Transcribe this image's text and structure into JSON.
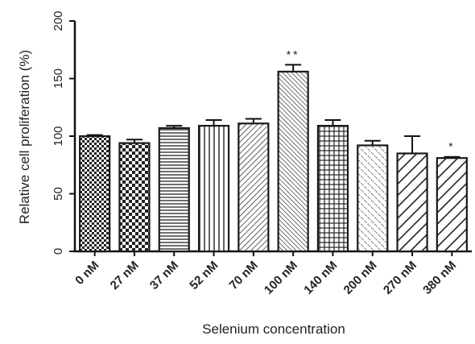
{
  "chart_data": {
    "type": "bar",
    "xlabel": "Selenium concentration",
    "ylabel": "Relative cell proliferation (%)",
    "ylim": [
      0,
      200
    ],
    "yticks": [
      0,
      50,
      100,
      150,
      200
    ],
    "grid": false,
    "categories": [
      "0 nM",
      "27 nM",
      "37 nM",
      "52 nM",
      "70 nM",
      "100 nM",
      "140 nM",
      "200 nM",
      "270 nM",
      "380 nM"
    ],
    "values": [
      100,
      94,
      107,
      109,
      111,
      156,
      109,
      92,
      85,
      81
    ],
    "errors": [
      1,
      3,
      2,
      5,
      4,
      6,
      5,
      4,
      15,
      1
    ],
    "annotations": [
      "",
      "",
      "",
      "",
      "",
      "**",
      "",
      "",
      "",
      "*"
    ],
    "patterns": [
      "checker-fine",
      "checker",
      "horizontal-lines",
      "vertical-lines",
      "diagonal-fine",
      "diagonal-dense",
      "grid",
      "diagonal-dotted",
      "diagonal-wide",
      "diagonal-wide"
    ],
    "colors": {
      "bar_stroke": "#1a1a1a",
      "bar_fill": "#ffffff",
      "axis": "#111111"
    }
  }
}
